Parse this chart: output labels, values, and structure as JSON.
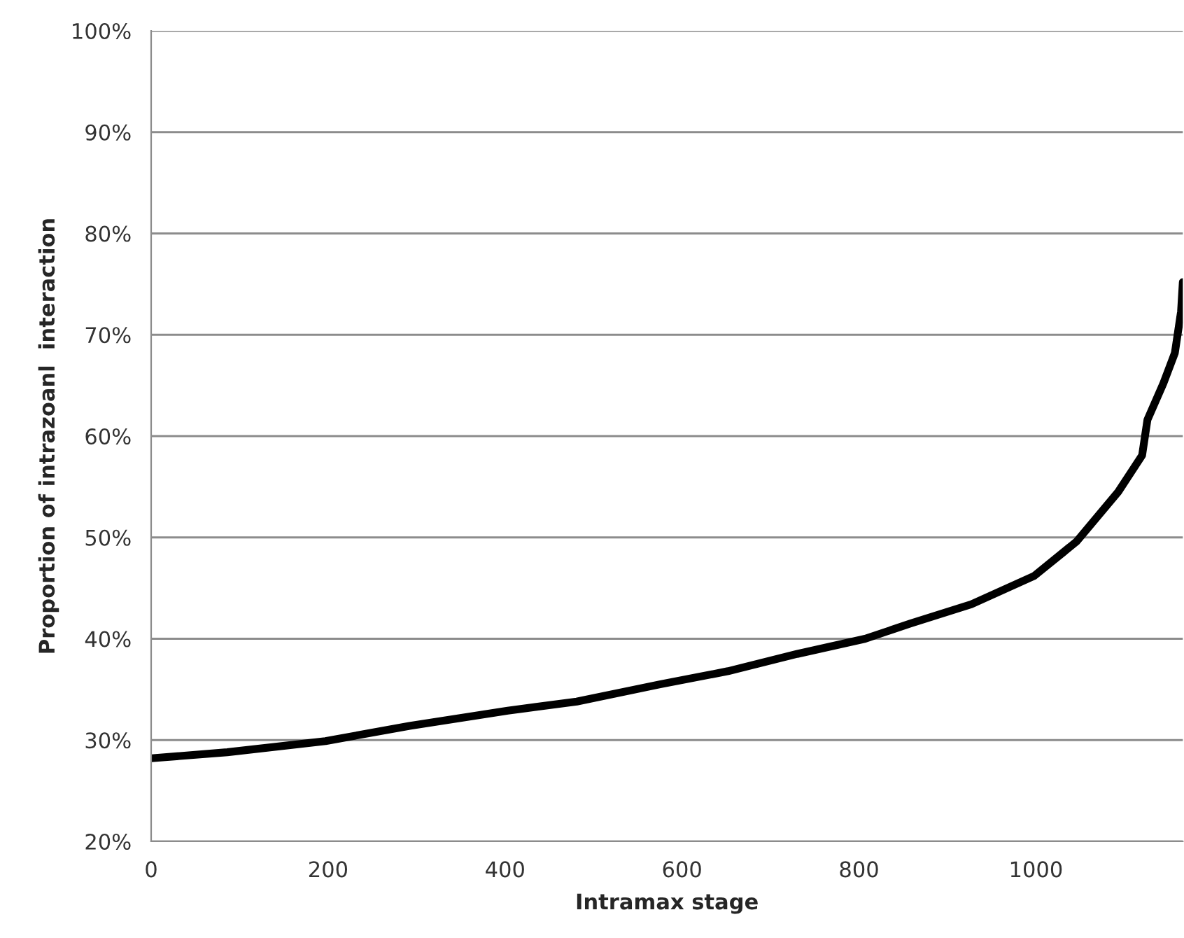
{
  "chart_data": {
    "type": "line",
    "xlabel": "Intramax stage",
    "ylabel": "Proportion of intrazoanl  interaction",
    "x": [
      0,
      86,
      197,
      292,
      403,
      481,
      575,
      652,
      730,
      807,
      858,
      927,
      998,
      1046,
      1093,
      1120,
      1126,
      1144,
      1157,
      1164,
      1166
    ],
    "series": [
      {
        "color": "#000000",
        "values": [
          28.2,
          28.8,
          29.9,
          31.4,
          32.9,
          33.8,
          35.5,
          36.8,
          38.5,
          40.0,
          41.5,
          43.4,
          46.2,
          49.6,
          54.5,
          58.1,
          61.6,
          65.2,
          68.2,
          72.3,
          75.2
        ]
      }
    ],
    "xlim": [
      0,
      1166
    ],
    "xticks": [
      0,
      200,
      400,
      600,
      800,
      1000
    ],
    "ylim": [
      20,
      100
    ],
    "yticks": [
      {
        "value": 20,
        "label": "20%"
      },
      {
        "value": 30,
        "label": "30%"
      },
      {
        "value": 40,
        "label": "40%"
      },
      {
        "value": 50,
        "label": "50%"
      },
      {
        "value": 60,
        "label": "60%"
      },
      {
        "value": 70,
        "label": "70%"
      },
      {
        "value": 80,
        "label": "80%"
      },
      {
        "value": 90,
        "label": "90%"
      },
      {
        "value": 100,
        "label": "100%"
      }
    ],
    "grid": "y",
    "marker": "none",
    "line_style": "solid"
  }
}
